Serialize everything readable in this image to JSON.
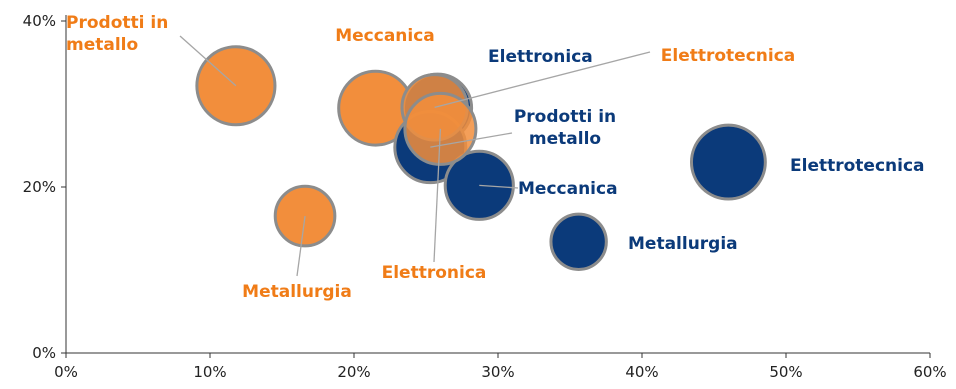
{
  "chart_data": {
    "type": "bubble",
    "title": "",
    "xlabel": "",
    "ylabel": "",
    "xlim": [
      0,
      60
    ],
    "ylim": [
      0,
      40
    ],
    "x_ticks": [
      "0%",
      "10%",
      "20%",
      "30%",
      "40%",
      "50%",
      "60%"
    ],
    "y_ticks": [
      "0%",
      "20%",
      "40%"
    ],
    "grid": false,
    "legend": "none",
    "series": [
      {
        "color": "#f28e3c",
        "stroke": "#8c8c8c",
        "points": [
          {
            "label": "Prodotti in metallo",
            "x": 11.8,
            "y": 32.2,
            "size": 5.5
          },
          {
            "label": "Meccanica",
            "x": 21.5,
            "y": 29.5,
            "size": 5.2
          },
          {
            "label": "Elettrotecnica",
            "x": 25.6,
            "y": 29.6,
            "size": 4.6
          },
          {
            "label": "Elettronica",
            "x": 26.0,
            "y": 27.0,
            "size": 5.0
          },
          {
            "label": "Metallurgia",
            "x": 16.6,
            "y": 16.5,
            "size": 4.2
          }
        ]
      },
      {
        "color": "#0b3a7a",
        "stroke": "#8c8c8c",
        "points": [
          {
            "label": "Elettronica",
            "x": 25.8,
            "y": 29.5,
            "size": 4.8
          },
          {
            "label": "Prodotti in metallo",
            "x": 25.3,
            "y": 24.8,
            "size": 5.0
          },
          {
            "label": "Meccanica",
            "x": 28.7,
            "y": 20.2,
            "size": 4.8
          },
          {
            "label": "Elettrotecnica",
            "x": 46.0,
            "y": 23.0,
            "size": 5.2
          },
          {
            "label": "Metallurgia",
            "x": 35.6,
            "y": 13.4,
            "size": 3.9
          }
        ]
      }
    ]
  }
}
